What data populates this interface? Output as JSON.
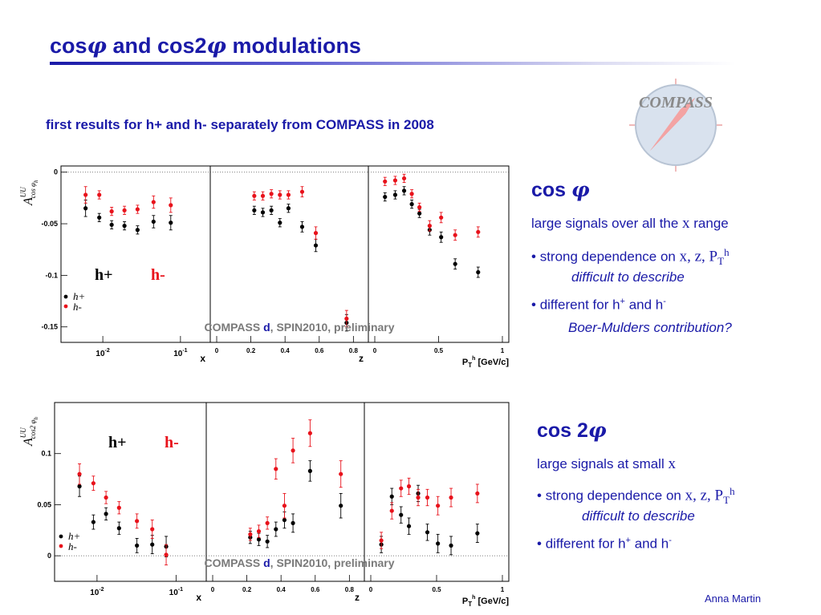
{
  "slide": {
    "title_pre": "cos",
    "phi": "φ",
    "title_mid": " and cos2",
    "title_post": " modulations",
    "subtitle": "first results for h+ and h- separately from COMPASS in 2008",
    "logo_text": "COMPASS",
    "author": "Anna Martin"
  },
  "right": {
    "cos": {
      "heading": "cos",
      "line1_pre": "large signals over all the ",
      "line1_var": "x",
      "line1_post": " range",
      "bullet1_pre": "strong dependence on ",
      "bullet1_vars": "x, z, P",
      "bullet1_sub": "T",
      "bullet1_sup": "h",
      "bullet1_note": "difficult to describe",
      "bullet2_pre": "different for h",
      "bullet2_sup1": "+",
      "bullet2_mid": " and h",
      "bullet2_sup2": "-",
      "bullet2_note": "Boer-Mulders contribution?"
    },
    "cos2": {
      "heading": "cos 2",
      "line1_pre": "large signals at small ",
      "line1_var": "x",
      "bullet1_pre": "strong dependence on ",
      "bullet1_vars": "x, z, P",
      "bullet1_sub": "T",
      "bullet1_sup": "h",
      "bullet1_note": "difficult to describe",
      "bullet2_pre": "different for h",
      "bullet2_sup1": "+",
      "bullet2_mid": " and h",
      "bullet2_sup2": "-"
    }
  },
  "colors": {
    "accent": "#1a1aa8",
    "hplus": "#000000",
    "hminus": "#e8121b",
    "label_gray": "#7a7a7a"
  },
  "chart_data": [
    {
      "type": "scatter",
      "observable": "A_UU^{cos φ_h}",
      "ylabel_main": "A",
      "ylabel_sup": "UU",
      "ylabel_sub": "cos φ",
      "ylabel_subsub": "h",
      "ylim": [
        -0.165,
        0.006
      ],
      "yticks": [
        0,
        -0.05,
        -0.1,
        -0.15
      ],
      "ytick_labels": [
        "0",
        "-0.05",
        "-0.1",
        "-0.15"
      ],
      "label_hplus": "h+",
      "label_hminus": "h-",
      "legend_hplus": "h+",
      "legend_hminus": "h-",
      "watermark_pre": "COMPASS ",
      "watermark_d": "d",
      "watermark_post": ", SPIN2010, preliminary",
      "panels": [
        {
          "xlabel": "x",
          "xscale": "log",
          "xlim": [
            0.0035,
            0.2
          ],
          "xticks": [
            0.01,
            0.1
          ],
          "xtick_labels": [
            "10-2",
            "10-1"
          ],
          "series": [
            {
              "name": "h+",
              "points": [
                [
                  0.006,
                  -0.035,
                  0.008
                ],
                [
                  0.009,
                  -0.044,
                  0.004
                ],
                [
                  0.013,
                  -0.051,
                  0.004
                ],
                [
                  0.019,
                  -0.052,
                  0.004
                ],
                [
                  0.028,
                  -0.056,
                  0.004
                ],
                [
                  0.045,
                  -0.048,
                  0.006
                ],
                [
                  0.075,
                  -0.049,
                  0.007
                ]
              ]
            },
            {
              "name": "h-",
              "points": [
                [
                  0.006,
                  -0.022,
                  0.008
                ],
                [
                  0.009,
                  -0.022,
                  0.004
                ],
                [
                  0.013,
                  -0.038,
                  0.004
                ],
                [
                  0.019,
                  -0.037,
                  0.004
                ],
                [
                  0.028,
                  -0.036,
                  0.004
                ],
                [
                  0.045,
                  -0.029,
                  0.006
                ],
                [
                  0.075,
                  -0.032,
                  0.007
                ]
              ]
            }
          ]
        },
        {
          "xlabel": "z",
          "xscale": "linear",
          "xlim": [
            0,
            0.85
          ],
          "xticks": [
            0,
            0.2,
            0.4,
            0.6,
            0.8
          ],
          "xtick_labels": [
            "0",
            "0.2",
            "0.4",
            "0.6",
            "0.8"
          ],
          "series": [
            {
              "name": "h+",
              "points": [
                [
                  0.22,
                  -0.037,
                  0.004
                ],
                [
                  0.27,
                  -0.039,
                  0.004
                ],
                [
                  0.32,
                  -0.037,
                  0.004
                ],
                [
                  0.37,
                  -0.049,
                  0.004
                ],
                [
                  0.42,
                  -0.035,
                  0.004
                ],
                [
                  0.5,
                  -0.053,
                  0.005
                ],
                [
                  0.58,
                  -0.071,
                  0.006
                ],
                [
                  0.76,
                  -0.146,
                  0.008
                ]
              ]
            },
            {
              "name": "h-",
              "points": [
                [
                  0.22,
                  -0.023,
                  0.004
                ],
                [
                  0.27,
                  -0.023,
                  0.004
                ],
                [
                  0.32,
                  -0.021,
                  0.004
                ],
                [
                  0.37,
                  -0.022,
                  0.004
                ],
                [
                  0.42,
                  -0.022,
                  0.004
                ],
                [
                  0.5,
                  -0.019,
                  0.005
                ],
                [
                  0.58,
                  -0.059,
                  0.006
                ],
                [
                  0.76,
                  -0.142,
                  0.008
                ]
              ]
            }
          ]
        },
        {
          "xlabel_pre": "P",
          "xlabel_sub": "T",
          "xlabel_sup": "h",
          "xlabel_post": " [GeV/c]",
          "xscale": "linear",
          "xlim": [
            0,
            1
          ],
          "xticks": [
            0,
            0.5,
            1
          ],
          "xtick_labels": [
            "0",
            "0.5",
            "1"
          ],
          "series": [
            {
              "name": "h+",
              "points": [
                [
                  0.08,
                  -0.024,
                  0.004
                ],
                [
                  0.16,
                  -0.022,
                  0.004
                ],
                [
                  0.23,
                  -0.018,
                  0.004
                ],
                [
                  0.29,
                  -0.031,
                  0.004
                ],
                [
                  0.35,
                  -0.04,
                  0.004
                ],
                [
                  0.43,
                  -0.056,
                  0.005
                ],
                [
                  0.52,
                  -0.063,
                  0.005
                ],
                [
                  0.63,
                  -0.089,
                  0.005
                ],
                [
                  0.81,
                  -0.097,
                  0.005
                ]
              ]
            },
            {
              "name": "h-",
              "points": [
                [
                  0.08,
                  -0.009,
                  0.004
                ],
                [
                  0.16,
                  -0.008,
                  0.004
                ],
                [
                  0.23,
                  -0.006,
                  0.004
                ],
                [
                  0.29,
                  -0.021,
                  0.004
                ],
                [
                  0.35,
                  -0.034,
                  0.004
                ],
                [
                  0.43,
                  -0.052,
                  0.005
                ],
                [
                  0.52,
                  -0.044,
                  0.005
                ],
                [
                  0.63,
                  -0.061,
                  0.005
                ],
                [
                  0.81,
                  -0.058,
                  0.005
                ]
              ]
            }
          ]
        }
      ]
    },
    {
      "type": "scatter",
      "observable": "A_UU^{cos 2φ_h}",
      "ylabel_main": "A",
      "ylabel_sup": "UU",
      "ylabel_sub": "cos2 φ",
      "ylabel_subsub": "h",
      "ylim": [
        -0.025,
        0.15
      ],
      "yticks": [
        0.1,
        0.05,
        0
      ],
      "ytick_labels": [
        "0.1",
        "0.05",
        "0"
      ],
      "label_hplus": "h+",
      "label_hminus": "h-",
      "legend_hplus": "h+",
      "legend_hminus": "h-",
      "watermark_pre": "COMPASS ",
      "watermark_d": "d",
      "watermark_post": ", SPIN2010, preliminary",
      "panels": [
        {
          "xlabel": "x",
          "xscale": "log",
          "xlim": [
            0.0035,
            0.2
          ],
          "xticks": [
            0.01,
            0.1
          ],
          "xtick_labels": [
            "10-2",
            "10-1"
          ],
          "series": [
            {
              "name": "h+",
              "points": [
                [
                  0.006,
                  0.068,
                  0.01
                ],
                [
                  0.009,
                  0.033,
                  0.007
                ],
                [
                  0.013,
                  0.041,
                  0.006
                ],
                [
                  0.019,
                  0.027,
                  0.006
                ],
                [
                  0.032,
                  0.01,
                  0.007
                ],
                [
                  0.05,
                  0.011,
                  0.009
                ],
                [
                  0.075,
                  0.009,
                  0.01
                ]
              ]
            },
            {
              "name": "h-",
              "points": [
                [
                  0.006,
                  0.08,
                  0.01
                ],
                [
                  0.009,
                  0.071,
                  0.007
                ],
                [
                  0.013,
                  0.057,
                  0.006
                ],
                [
                  0.019,
                  0.047,
                  0.006
                ],
                [
                  0.032,
                  0.034,
                  0.007
                ],
                [
                  0.05,
                  0.026,
                  0.009
                ],
                [
                  0.075,
                  0.001,
                  0.01
                ]
              ]
            }
          ]
        },
        {
          "xlabel": "z",
          "xscale": "linear",
          "xlim": [
            0,
            0.85
          ],
          "xticks": [
            0,
            0.2,
            0.4,
            0.6,
            0.8
          ],
          "xtick_labels": [
            "0",
            "0.2",
            "0.4",
            "0.6",
            "0.8"
          ],
          "series": [
            {
              "name": "h+",
              "points": [
                [
                  0.22,
                  0.018,
                  0.006
                ],
                [
                  0.27,
                  0.016,
                  0.006
                ],
                [
                  0.32,
                  0.014,
                  0.006
                ],
                [
                  0.37,
                  0.026,
                  0.007
                ],
                [
                  0.42,
                  0.035,
                  0.008
                ],
                [
                  0.47,
                  0.032,
                  0.009
                ],
                [
                  0.57,
                  0.083,
                  0.01
                ],
                [
                  0.75,
                  0.049,
                  0.012
                ]
              ]
            },
            {
              "name": "h-",
              "points": [
                [
                  0.22,
                  0.021,
                  0.006
                ],
                [
                  0.27,
                  0.024,
                  0.006
                ],
                [
                  0.32,
                  0.032,
                  0.006
                ],
                [
                  0.37,
                  0.085,
                  0.01
                ],
                [
                  0.42,
                  0.049,
                  0.012
                ],
                [
                  0.47,
                  0.103,
                  0.012
                ],
                [
                  0.57,
                  0.12,
                  0.013
                ],
                [
                  0.75,
                  0.08,
                  0.013
                ]
              ]
            }
          ]
        },
        {
          "xlabel_pre": "P",
          "xlabel_sub": "T",
          "xlabel_sup": "h",
          "xlabel_post": " [GeV/c]",
          "xscale": "linear",
          "xlim": [
            0,
            1
          ],
          "xticks": [
            0,
            0.5,
            1
          ],
          "xtick_labels": [
            "0",
            "0.5",
            "1"
          ],
          "series": [
            {
              "name": "h+",
              "points": [
                [
                  0.08,
                  0.011,
                  0.008
                ],
                [
                  0.16,
                  0.058,
                  0.008
                ],
                [
                  0.23,
                  0.04,
                  0.008
                ],
                [
                  0.29,
                  0.029,
                  0.008
                ],
                [
                  0.36,
                  0.061,
                  0.008
                ],
                [
                  0.43,
                  0.023,
                  0.008
                ],
                [
                  0.51,
                  0.012,
                  0.009
                ],
                [
                  0.61,
                  0.01,
                  0.009
                ],
                [
                  0.81,
                  0.022,
                  0.009
                ]
              ]
            },
            {
              "name": "h-",
              "points": [
                [
                  0.08,
                  0.015,
                  0.008
                ],
                [
                  0.16,
                  0.044,
                  0.008
                ],
                [
                  0.23,
                  0.066,
                  0.008
                ],
                [
                  0.29,
                  0.068,
                  0.008
                ],
                [
                  0.36,
                  0.057,
                  0.008
                ],
                [
                  0.43,
                  0.057,
                  0.008
                ],
                [
                  0.51,
                  0.049,
                  0.009
                ],
                [
                  0.61,
                  0.057,
                  0.009
                ],
                [
                  0.81,
                  0.061,
                  0.009
                ]
              ]
            }
          ]
        }
      ]
    }
  ]
}
